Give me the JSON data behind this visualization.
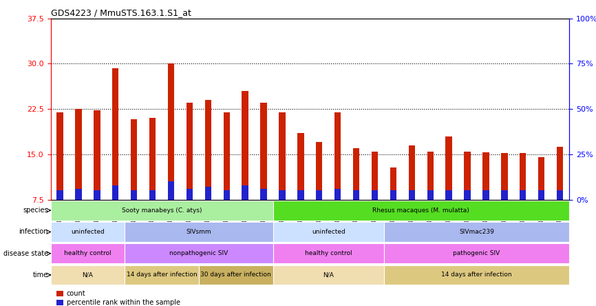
{
  "title": "GDS4223 / MmuSTS.163.1.S1_at",
  "samples": [
    "GSM440057",
    "GSM440058",
    "GSM440059",
    "GSM440060",
    "GSM440061",
    "GSM440062",
    "GSM440063",
    "GSM440064",
    "GSM440065",
    "GSM440066",
    "GSM440067",
    "GSM440068",
    "GSM440069",
    "GSM440070",
    "GSM440071",
    "GSM440072",
    "GSM440073",
    "GSM440074",
    "GSM440075",
    "GSM440076",
    "GSM440077",
    "GSM440078",
    "GSM440079",
    "GSM440080",
    "GSM440081",
    "GSM440082",
    "GSM440083",
    "GSM440084"
  ],
  "counts": [
    22.0,
    22.5,
    22.3,
    29.3,
    20.8,
    21.0,
    30.1,
    23.5,
    24.0,
    22.0,
    25.5,
    23.5,
    22.0,
    18.5,
    17.0,
    22.0,
    16.0,
    15.5,
    12.8,
    16.5,
    15.5,
    18.0,
    15.5,
    15.3,
    15.2,
    15.2,
    14.5,
    16.2
  ],
  "percentiles_pct": [
    5,
    6,
    5,
    8,
    5,
    5,
    10,
    6,
    7,
    5,
    8,
    6,
    5,
    5,
    5,
    6,
    5,
    5,
    5,
    5,
    5,
    5,
    5,
    5,
    5,
    5,
    5,
    5
  ],
  "baseline": 7.5,
  "ylim_left": [
    7.5,
    37.5
  ],
  "yticks_left": [
    7.5,
    15.0,
    22.5,
    30.0,
    37.5
  ],
  "ylim_right": [
    0,
    100
  ],
  "yticks_right": [
    0,
    25,
    50,
    75,
    100
  ],
  "bar_color": "#cc2200",
  "pct_color": "#2222cc",
  "plot_bg": "#ffffff",
  "grid_dotted_at": [
    15.0,
    22.5,
    30.0
  ],
  "annotations": {
    "species": {
      "label": "species",
      "regions": [
        {
          "text": "Sooty manabeys (C. atys)",
          "start": 0,
          "end": 12,
          "color": "#aaeea0"
        },
        {
          "text": "Rhesus macaques (M. mulatta)",
          "start": 12,
          "end": 28,
          "color": "#55dd22"
        }
      ]
    },
    "infection": {
      "label": "infection",
      "regions": [
        {
          "text": "uninfected",
          "start": 0,
          "end": 4,
          "color": "#cce0ff"
        },
        {
          "text": "SIVsmm",
          "start": 4,
          "end": 12,
          "color": "#aab8f0"
        },
        {
          "text": "uninfected",
          "start": 12,
          "end": 18,
          "color": "#cce0ff"
        },
        {
          "text": "SIVmac239",
          "start": 18,
          "end": 28,
          "color": "#aab8f0"
        }
      ]
    },
    "disease_state": {
      "label": "disease state",
      "regions": [
        {
          "text": "healthy control",
          "start": 0,
          "end": 4,
          "color": "#f080f0"
        },
        {
          "text": "nonpathogenic SIV",
          "start": 4,
          "end": 12,
          "color": "#cc88ff"
        },
        {
          "text": "healthy control",
          "start": 12,
          "end": 18,
          "color": "#f080f0"
        },
        {
          "text": "pathogenic SIV",
          "start": 18,
          "end": 28,
          "color": "#f080f0"
        }
      ]
    },
    "time": {
      "label": "time",
      "regions": [
        {
          "text": "N/A",
          "start": 0,
          "end": 4,
          "color": "#f0ddb0"
        },
        {
          "text": "14 days after infection",
          "start": 4,
          "end": 8,
          "color": "#ddc880"
        },
        {
          "text": "30 days after infection",
          "start": 8,
          "end": 12,
          "color": "#c8b060"
        },
        {
          "text": "N/A",
          "start": 12,
          "end": 18,
          "color": "#f0ddb0"
        },
        {
          "text": "14 days after infection",
          "start": 18,
          "end": 28,
          "color": "#ddc880"
        }
      ]
    }
  },
  "legend": [
    {
      "label": "count",
      "color": "#cc2200"
    },
    {
      "label": "percentile rank within the sample",
      "color": "#2222cc"
    }
  ]
}
